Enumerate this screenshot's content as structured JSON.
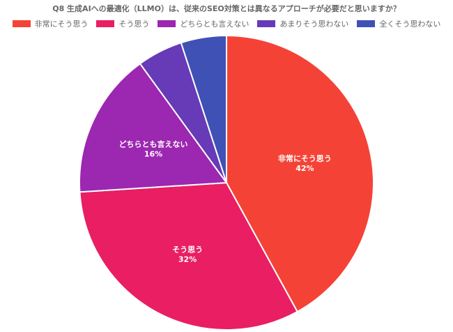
{
  "chart_data": {
    "type": "pie",
    "title": "Q8 生成AIへの最適化（LLMO）は、従来のSEO対策とは異なるアプローチが必要だと思いますか？",
    "legend_position": "top",
    "categories": [
      "非常にそう思う",
      "そう思う",
      "どちらとも言えない",
      "あまりそう思わない",
      "全くそう思わない"
    ],
    "values": [
      42,
      32,
      16,
      5,
      5
    ],
    "value_labels": [
      "42%",
      "32%",
      "16%",
      "",
      ""
    ],
    "colors": [
      "#f44336",
      "#e91e63",
      "#9c27b0",
      "#673ab7",
      "#3f51b5"
    ]
  }
}
